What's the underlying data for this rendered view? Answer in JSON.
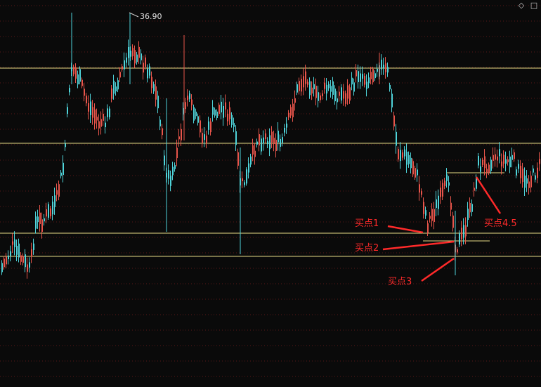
{
  "window": {
    "diamond_icon": "diamond-icon",
    "maximize_icon": "maximize-icon"
  },
  "chart_data": {
    "type": "candlestick",
    "max_label": "36.90",
    "colors": {
      "background": "#0a0a0a",
      "up": "#e8554b",
      "down": "#4fd3d9",
      "level_line": "#e8dc86",
      "grid": "#5a1818",
      "annotation": "#ff2a2a"
    },
    "annotations": [
      {
        "label": "买点1"
      },
      {
        "label": "买点2"
      },
      {
        "label": "买点3"
      },
      {
        "label": "买点4.5"
      }
    ]
  }
}
